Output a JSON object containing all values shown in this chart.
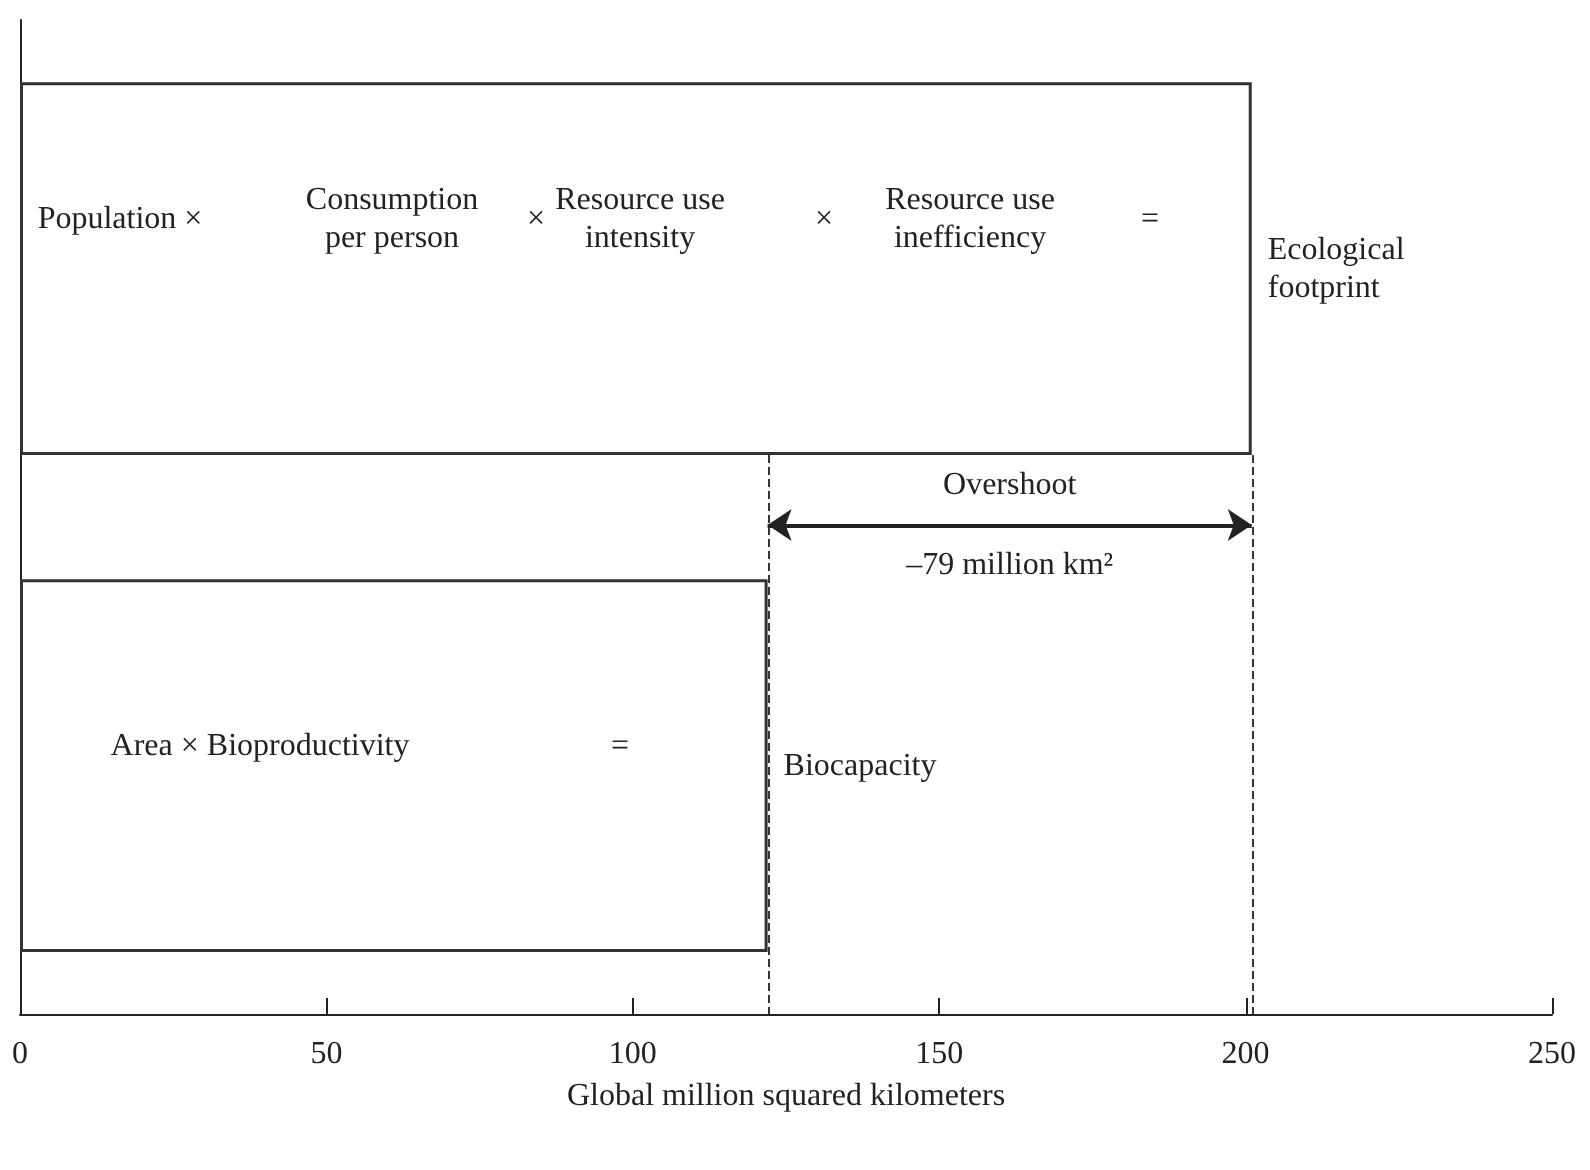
{
  "chart_data": {
    "type": "bar",
    "orientation": "horizontal",
    "categories": [
      "Ecological footprint",
      "Biocapacity"
    ],
    "values": [
      201,
      122
    ],
    "color": "#ffffff",
    "xlim": [
      0,
      250
    ],
    "xticks": [
      0,
      50,
      100,
      150,
      200,
      250
    ],
    "xlabel": "Global million squared kilometers",
    "tick_labels": "x",
    "ref_lines": [
      {
        "axis": "x",
        "value": 122,
        "line_style": "dashed"
      },
      {
        "axis": "x",
        "value": 201,
        "line_style": "dashed"
      }
    ],
    "annotations": [
      "Population ×",
      "Consumption\nper person",
      "×",
      "Resource use\nintensity",
      "×",
      "Resource use\ninefficiency",
      "=",
      "Area × Bioproductivity",
      "=",
      "Overshoot",
      "–79 million km²"
    ]
  }
}
